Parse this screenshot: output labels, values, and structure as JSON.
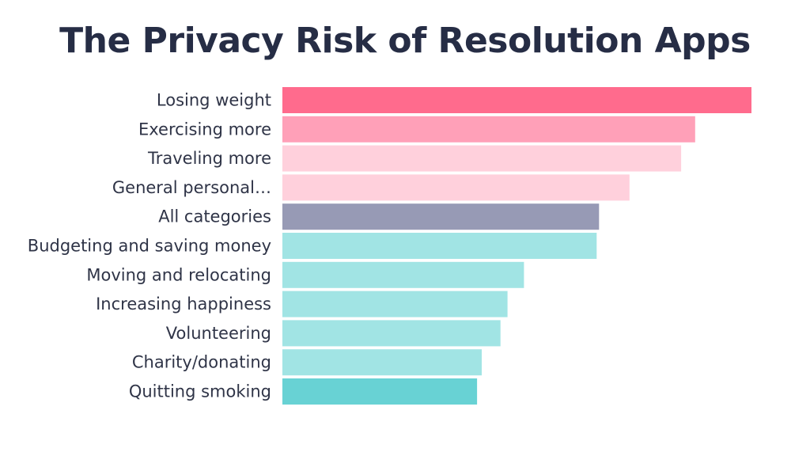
{
  "chart_data": {
    "type": "bar",
    "orientation": "horizontal",
    "title": "The Privacy Risk of Resolution Apps",
    "xlabel": "",
    "ylabel": "",
    "grid": false,
    "legend": "none",
    "xlim": [
      0,
      100
    ],
    "categories": [
      "Losing weight",
      "Exercising more",
      "Traveling more",
      "General personal…",
      "All categories",
      "Budgeting and saving money",
      "Moving and relocating",
      "Increasing happiness",
      "Volunteering",
      "Charity/donating",
      "Quitting smoking"
    ],
    "values": [
      100,
      88,
      85,
      74,
      67.5,
      67,
      51.5,
      48,
      46.5,
      42.5,
      41.5
    ],
    "colors": [
      "#ff6b8d",
      "#ffa0b8",
      "#ffd0dc",
      "#ffd0dc",
      "#979ab5",
      "#a1e4e4",
      "#a1e4e4",
      "#a1e4e4",
      "#a1e4e4",
      "#a1e4e4",
      "#68d2d4"
    ]
  }
}
